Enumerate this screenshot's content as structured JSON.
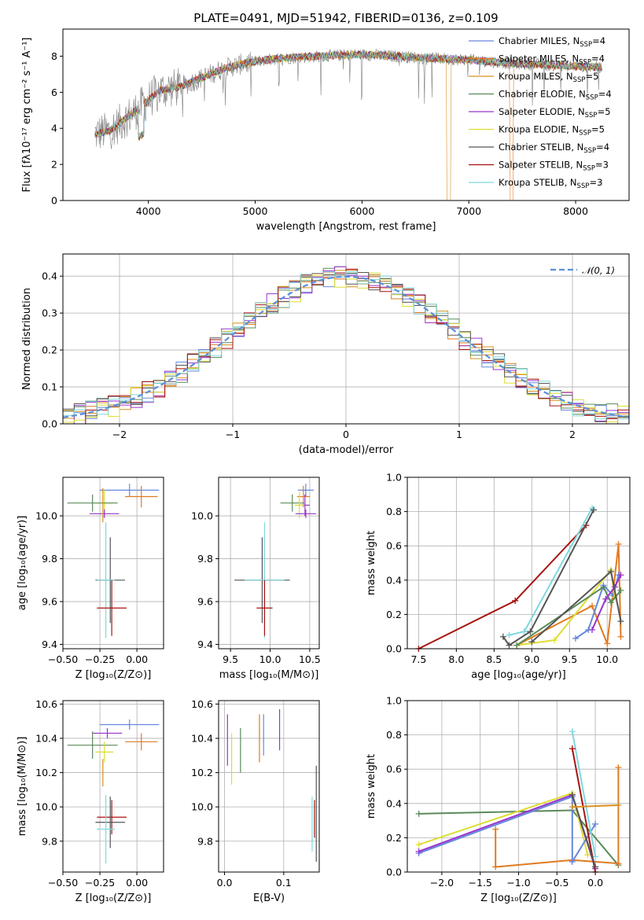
{
  "figure_title": "PLATE=0491, MJD=51942, FIBERID=0136, z=0.109",
  "colors": {
    "Chabrier MILES": "#6688dd",
    "Salpeter MILES": "#e07a20",
    "Kroupa MILES": "#d89020",
    "Chabrier ELODIE": "#5a8a5a",
    "Salpeter ELODIE": "#9933cc",
    "Kroupa ELODIE": "#dddd33",
    "Chabrier STELIB": "#555555",
    "Salpeter STELIB": "#aa1111",
    "Kroupa STELIB": "#7fd8dd",
    "spectrum": "#808080",
    "normal": "#5b8fd8"
  },
  "chart_data": [
    {
      "id": "spectrum",
      "type": "line",
      "xlabel": "wavelength [Angstrom, rest frame]",
      "ylabel": "Flux [fλ10⁻¹⁷ erg cm⁻² s⁻¹ A⁻¹]",
      "xlim": [
        3200,
        8500
      ],
      "ylim": [
        0,
        9.5
      ],
      "xticks": [
        "4000",
        "5000",
        "6000",
        "7000",
        "8000"
      ],
      "xtick_values": [
        4000,
        5000,
        6000,
        7000,
        8000
      ],
      "yticks": [
        "0",
        "2",
        "4",
        "6",
        "8"
      ],
      "ytick_values": [
        0,
        2,
        4,
        6,
        8
      ],
      "legend": [
        {
          "label": "Chabrier MILES, N",
          "sub": "SSP",
          "suffix": "=4",
          "color": "#6688dd"
        },
        {
          "label": "Salpeter MILES, N",
          "sub": "SSP",
          "suffix": "=4",
          "color": "#e07a20"
        },
        {
          "label": "Kroupa MILES, N",
          "sub": "SSP",
          "suffix": "=5",
          "color": "#d89020"
        },
        {
          "label": "Chabrier ELODIE, N",
          "sub": "SSP",
          "suffix": "=4",
          "color": "#5a8a5a"
        },
        {
          "label": "Salpeter ELODIE, N",
          "sub": "SSP",
          "suffix": "=5",
          "color": "#9933cc"
        },
        {
          "label": "Kroupa ELODIE, N",
          "sub": "SSP",
          "suffix": "=5",
          "color": "#dddd33"
        },
        {
          "label": "Chabrier STELIB, N",
          "sub": "SSP",
          "suffix": "=4",
          "color": "#555555"
        },
        {
          "label": "Salpeter STELIB, N",
          "sub": "SSP",
          "suffix": "=3",
          "color": "#aa1111"
        },
        {
          "label": "Kroupa STELIB, N",
          "sub": "SSP",
          "suffix": "=3",
          "color": "#7fd8dd"
        }
      ],
      "model_trend": [
        [
          3500,
          3.7
        ],
        [
          3650,
          3.9
        ],
        [
          3800,
          4.6
        ],
        [
          3950,
          5.3
        ],
        [
          4100,
          6.1
        ],
        [
          4300,
          6.3
        ],
        [
          4500,
          6.8
        ],
        [
          4700,
          7.3
        ],
        [
          4900,
          7.6
        ],
        [
          5100,
          7.8
        ],
        [
          5300,
          7.9
        ],
        [
          5600,
          8.0
        ],
        [
          6000,
          8.1
        ],
        [
          6300,
          8.0
        ],
        [
          6600,
          7.9
        ],
        [
          7000,
          7.8
        ],
        [
          7400,
          7.6
        ],
        [
          7800,
          7.5
        ],
        [
          8200,
          7.4
        ]
      ]
    },
    {
      "id": "residuals",
      "type": "histogram",
      "xlabel": "(data-model)/error",
      "ylabel": "Normed distribution",
      "xlim": [
        -2.5,
        2.5
      ],
      "ylim": [
        0,
        0.46
      ],
      "xticks": [
        "−2",
        "−1",
        "0",
        "1",
        "2"
      ],
      "xtick_values": [
        -2,
        -1,
        0,
        1,
        2
      ],
      "yticks": [
        "0.0",
        "0.1",
        "0.2",
        "0.3",
        "0.4"
      ],
      "ytick_values": [
        0,
        0.1,
        0.2,
        0.3,
        0.4
      ],
      "bins_start": -2.5,
      "bin_width": 0.1,
      "legend": "𝒩(0, 1)",
      "curve": "normal(0,1)"
    },
    {
      "id": "age_vs_Z",
      "type": "errorbar",
      "xlabel": "Z [log₁₀(Z/Z⊙)]",
      "ylabel": "age  [log₁₀(age/yr)]",
      "xlim": [
        -0.5,
        0.18
      ],
      "ylim": [
        9.38,
        10.18
      ],
      "xticks": [
        "−0.50",
        "−0.25",
        "0.00"
      ],
      "xtick_values": [
        -0.5,
        -0.25,
        0.0
      ],
      "yticks": [
        "9.4",
        "9.6",
        "9.8",
        "10.0"
      ],
      "ytick_values": [
        9.4,
        9.6,
        9.8,
        10.0
      ],
      "points": [
        {
          "model": "Chabrier MILES",
          "x": -0.05,
          "y": 10.12,
          "xerr": 0.2,
          "yerr": 0.03
        },
        {
          "model": "Salpeter MILES",
          "x": 0.03,
          "y": 10.09,
          "xerr": 0.11,
          "yerr": 0.05
        },
        {
          "model": "Kroupa ELODIE",
          "x": -0.22,
          "y": 10.06,
          "xerr": 0.06,
          "yerr": 0.06
        },
        {
          "model": "Chabrier ELODIE",
          "x": -0.3,
          "y": 10.06,
          "xerr": 0.17,
          "yerr": 0.04
        },
        {
          "model": "Salpeter ELODIE",
          "x": -0.22,
          "y": 10.01,
          "xerr": 0.1,
          "yerr": 0.02
        },
        {
          "model": "Kroupa MILES",
          "x": -0.23,
          "y": 10.05,
          "xerr": 0.0,
          "yerr": 0.08
        },
        {
          "model": "Chabrier STELIB",
          "x": -0.18,
          "y": 9.7,
          "xerr": 0.1,
          "yerr": 0.2
        },
        {
          "model": "Kroupa STELIB",
          "x": -0.21,
          "y": 9.7,
          "xerr": 0.06,
          "yerr": 0.27
        },
        {
          "model": "Salpeter STELIB",
          "x": -0.17,
          "y": 9.57,
          "xerr": 0.1,
          "yerr": 0.13
        }
      ]
    },
    {
      "id": "age_vs_mass",
      "type": "errorbar",
      "xlabel": "mass [log₁₀(M/M⊙)]",
      "ylabel": "",
      "xlim": [
        9.35,
        10.62
      ],
      "ylim": [
        9.38,
        10.18
      ],
      "xticks": [
        "9.5",
        "10.0",
        "10.5"
      ],
      "xtick_values": [
        9.5,
        10.0,
        10.5
      ],
      "yticks": [
        "9.4",
        "9.6",
        "9.8",
        "10.0"
      ],
      "ytick_values": [
        9.4,
        9.6,
        9.8,
        10.0
      ],
      "points": [
        {
          "model": "Chabrier MILES",
          "x": 10.45,
          "y": 10.12,
          "xerr": 0.1,
          "yerr": 0.03
        },
        {
          "model": "Salpeter MILES",
          "x": 10.42,
          "y": 10.09,
          "xerr": 0.08,
          "yerr": 0.05
        },
        {
          "model": "Salpeter ELODIE",
          "x": 10.44,
          "y": 10.05,
          "xerr": 0.06,
          "yerr": 0.05
        },
        {
          "model": "Chabrier ELODIE",
          "x": 10.28,
          "y": 10.06,
          "xerr": 0.15,
          "yerr": 0.04
        },
        {
          "model": "Kroupa ELODIE",
          "x": 10.37,
          "y": 10.05,
          "xerr": 0.06,
          "yerr": 0.06
        },
        {
          "model": "Salpeter ELODIE",
          "x": 10.45,
          "y": 10.01,
          "xerr": 0.13,
          "yerr": 0.02
        },
        {
          "model": "Chabrier STELIB",
          "x": 9.9,
          "y": 9.7,
          "xerr": 0.35,
          "yerr": 0.2
        },
        {
          "model": "Kroupa STELIB",
          "x": 9.93,
          "y": 9.7,
          "xerr": 0.25,
          "yerr": 0.27
        },
        {
          "model": "Salpeter STELIB",
          "x": 9.93,
          "y": 9.57,
          "xerr": 0.1,
          "yerr": 0.13
        }
      ]
    },
    {
      "id": "weight_vs_age",
      "type": "line",
      "xlabel": "age  [log₁₀(age/yr)]",
      "ylabel": "mass weight",
      "xlim": [
        7.35,
        10.3
      ],
      "ylim": [
        0,
        1.0
      ],
      "xticks": [
        "7.5",
        "8.0",
        "8.5",
        "9.0",
        "9.5",
        "10.0"
      ],
      "xtick_values": [
        7.5,
        8.0,
        8.5,
        9.0,
        9.5,
        10.0
      ],
      "yticks": [
        "0.0",
        "0.2",
        "0.4",
        "0.6",
        "0.8",
        "1.0"
      ],
      "ytick_values": [
        0,
        0.2,
        0.4,
        0.6,
        0.8,
        1.0
      ],
      "series": [
        {
          "model": "Salpeter STELIB",
          "points": [
            [
              7.5,
              0.0
            ],
            [
              8.78,
              0.28
            ],
            [
              9.72,
              0.72
            ]
          ]
        },
        {
          "model": "Kroupa STELIB",
          "points": [
            [
              8.7,
              0.08
            ],
            [
              8.9,
              0.1
            ],
            [
              9.8,
              0.82
            ]
          ]
        },
        {
          "model": "Chabrier STELIB",
          "points": [
            [
              8.62,
              0.07
            ],
            [
              8.7,
              0.02
            ],
            [
              8.98,
              0.1
            ],
            [
              9.82,
              0.81
            ]
          ]
        },
        {
          "model": "Salpeter MILES",
          "points": [
            [
              8.8,
              0.02
            ],
            [
              9.8,
              0.25
            ],
            [
              10.0,
              0.03
            ],
            [
              10.15,
              0.61
            ],
            [
              10.18,
              0.07
            ]
          ]
        },
        {
          "model": "Chabrier MILES",
          "points": [
            [
              9.58,
              0.06
            ],
            [
              9.75,
              0.11
            ],
            [
              9.95,
              0.37
            ],
            [
              10.08,
              0.31
            ],
            [
              10.15,
              0.43
            ]
          ]
        },
        {
          "model": "Kroupa ELODIE",
          "points": [
            [
              8.8,
              0.02
            ],
            [
              9.3,
              0.05
            ],
            [
              10.05,
              0.46
            ],
            [
              10.1,
              0.3
            ]
          ]
        },
        {
          "model": "Chabrier ELODIE",
          "points": [
            [
              8.8,
              0.02
            ],
            [
              9.95,
              0.36
            ],
            [
              10.05,
              0.27
            ],
            [
              10.18,
              0.34
            ]
          ]
        },
        {
          "model": "Salpeter ELODIE",
          "points": [
            [
              9.8,
              0.11
            ],
            [
              9.98,
              0.29
            ],
            [
              10.1,
              0.36
            ],
            [
              10.18,
              0.43
            ]
          ]
        },
        {
          "model": "Chabrier STELIB",
          "points": [
            [
              9.0,
              0.04
            ],
            [
              10.05,
              0.45
            ],
            [
              10.18,
              0.16
            ]
          ]
        }
      ]
    },
    {
      "id": "mass_vs_Z",
      "type": "errorbar",
      "xlabel": "Z [log₁₀(Z/Z⊙)]",
      "ylabel": "mass [log₁₀(M/M⊙)]",
      "xlim": [
        -0.5,
        0.18
      ],
      "ylim": [
        9.62,
        10.62
      ],
      "xticks": [
        "−0.50",
        "−0.25",
        "0.00"
      ],
      "xtick_values": [
        -0.5,
        -0.25,
        0.0
      ],
      "yticks": [
        "9.8",
        "10.0",
        "10.2",
        "10.4",
        "10.6"
      ],
      "ytick_values": [
        9.8,
        10.0,
        10.2,
        10.4,
        10.6
      ],
      "points": [
        {
          "model": "Chabrier MILES",
          "x": -0.05,
          "y": 10.48,
          "xerr": 0.2,
          "yerr": 0.03
        },
        {
          "model": "Salpeter ELODIE",
          "x": -0.2,
          "y": 10.43,
          "xerr": 0.1,
          "yerr": 0.03
        },
        {
          "model": "Salpeter MILES",
          "x": 0.03,
          "y": 10.38,
          "xerr": 0.11,
          "yerr": 0.05
        },
        {
          "model": "Chabrier ELODIE",
          "x": -0.3,
          "y": 10.36,
          "xerr": 0.17,
          "yerr": 0.08
        },
        {
          "model": "Kroupa ELODIE",
          "x": -0.22,
          "y": 10.32,
          "xerr": 0.06,
          "yerr": 0.06
        },
        {
          "model": "Kroupa MILES",
          "x": -0.23,
          "y": 10.2,
          "xerr": 0.0,
          "yerr": 0.08
        },
        {
          "model": "Salpeter STELIB",
          "x": -0.17,
          "y": 9.94,
          "xerr": 0.1,
          "yerr": 0.1
        },
        {
          "model": "Chabrier STELIB",
          "x": -0.18,
          "y": 9.91,
          "xerr": 0.1,
          "yerr": 0.15
        },
        {
          "model": "Kroupa STELIB",
          "x": -0.21,
          "y": 9.87,
          "xerr": 0.06,
          "yerr": 0.2
        }
      ]
    },
    {
      "id": "mass_vs_ebv",
      "type": "errorbar",
      "xlabel": "E(B-V)",
      "ylabel": "",
      "xlim": [
        -0.01,
        0.16
      ],
      "ylim": [
        9.62,
        10.62
      ],
      "xticks": [
        "0.0",
        "0.1"
      ],
      "xtick_values": [
        0.0,
        0.1
      ],
      "yticks": [
        "9.8",
        "10.0",
        "10.2",
        "10.4",
        "10.6"
      ],
      "ytick_values": [
        9.8,
        10.0,
        10.2,
        10.4,
        10.6
      ],
      "points": [
        {
          "model": "Salpeter ELODIE",
          "x": 0.005,
          "y": 10.39,
          "xerr": 0,
          "yerr": 0.15
        },
        {
          "model": "Kroupa ELODIE",
          "x": 0.012,
          "y": 10.28,
          "xerr": 0,
          "yerr": 0.15
        },
        {
          "model": "Chabrier ELODIE",
          "x": 0.027,
          "y": 10.33,
          "xerr": 0,
          "yerr": 0.13
        },
        {
          "model": "Salpeter MILES",
          "x": 0.059,
          "y": 10.4,
          "xerr": 0,
          "yerr": 0.14
        },
        {
          "model": "Chabrier MILES",
          "x": 0.066,
          "y": 10.42,
          "xerr": 0,
          "yerr": 0.12
        },
        {
          "model": "Salpeter ELODIE",
          "x": 0.093,
          "y": 10.45,
          "xerr": 0,
          "yerr": 0.12
        },
        {
          "model": "Kroupa STELIB",
          "x": 0.148,
          "y": 9.9,
          "xerr": 0,
          "yerr": 0.16
        },
        {
          "model": "Salpeter STELIB",
          "x": 0.152,
          "y": 9.93,
          "xerr": 0,
          "yerr": 0.11
        },
        {
          "model": "Chabrier STELIB",
          "x": 0.155,
          "y": 9.96,
          "xerr": 0,
          "yerr": 0.28
        }
      ]
    },
    {
      "id": "weight_vs_Z",
      "type": "line",
      "xlabel": "Z [log₁₀(Z/Z⊙)]",
      "ylabel": "mass weight",
      "xlim": [
        -2.45,
        0.45
      ],
      "ylim": [
        0,
        1.0
      ],
      "xticks": [
        "−2.0",
        "−1.5",
        "−1.0",
        "−0.5",
        "0.0"
      ],
      "xtick_values": [
        -2.0,
        -1.5,
        -1.0,
        -0.5,
        0.0
      ],
      "yticks": [
        "0.0",
        "0.2",
        "0.4",
        "0.6",
        "0.8",
        "1.0"
      ],
      "ytick_values": [
        0,
        0.2,
        0.4,
        0.6,
        0.8,
        1.0
      ],
      "series": [
        {
          "model": "Chabrier ELODIE",
          "points": [
            [
              -2.3,
              0.34
            ],
            [
              -0.3,
              0.36
            ],
            [
              0.3,
              0.04
            ]
          ]
        },
        {
          "model": "Salpeter MILES",
          "points": [
            [
              -1.3,
              0.25
            ],
            [
              -1.3,
              0.03
            ],
            [
              -0.3,
              0.07
            ],
            [
              0.3,
              0.05
            ],
            [
              0.3,
              0.61
            ]
          ]
        },
        {
          "model": "Kroupa ELODIE",
          "points": [
            [
              -2.3,
              0.16
            ],
            [
              -0.3,
              0.46
            ],
            [
              -0.1,
              0.1
            ]
          ]
        },
        {
          "model": "Chabrier MILES",
          "points": [
            [
              -2.3,
              0.11
            ],
            [
              -0.3,
              0.44
            ],
            [
              -0.3,
              0.06
            ],
            [
              0.0,
              0.28
            ]
          ]
        },
        {
          "model": "Salpeter ELODIE",
          "points": [
            [
              -2.3,
              0.12
            ],
            [
              -0.3,
              0.45
            ],
            [
              0.0,
              0.02
            ]
          ]
        },
        {
          "model": "Kroupa STELIB",
          "points": [
            [
              -0.3,
              0.82
            ],
            [
              0.0,
              0.09
            ]
          ]
        },
        {
          "model": "Salpeter STELIB",
          "points": [
            [
              -0.3,
              0.72
            ],
            [
              0.0,
              0.0
            ]
          ]
        },
        {
          "model": "Chabrier STELIB",
          "points": [
            [
              -0.3,
              0.45
            ],
            [
              0.0,
              0.03
            ]
          ]
        },
        {
          "model": "Kroupa MILES",
          "points": [
            [
              -0.3,
              0.38
            ],
            [
              0.3,
              0.39
            ]
          ]
        }
      ]
    }
  ]
}
